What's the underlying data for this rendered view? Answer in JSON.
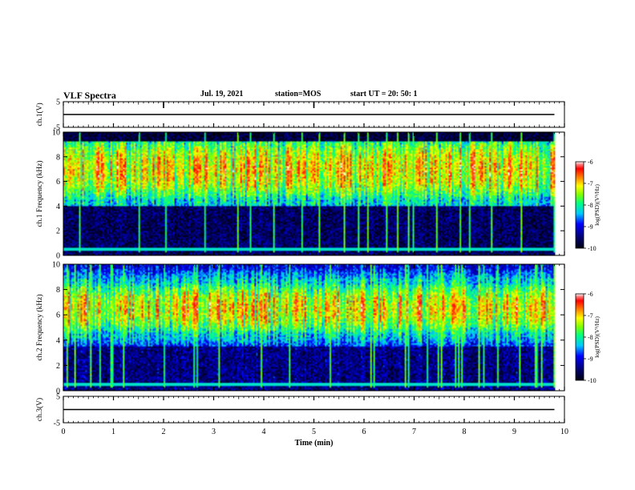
{
  "header": {
    "title": "VLF Spectra",
    "date": "Jul. 19, 2021",
    "station": "station=MOS",
    "start_ut": "start UT =  20: 50: 1"
  },
  "chart_data": [
    {
      "type": "line",
      "panel": "ch1-waveform",
      "ylabel": "ch.1(V)",
      "ylim": [
        -5,
        5
      ],
      "y_ticks": [
        "5",
        "-5"
      ],
      "xlim": [
        0,
        10
      ],
      "series": [
        {
          "x": [
            0,
            9.8
          ],
          "y": [
            0,
            0
          ]
        }
      ]
    },
    {
      "type": "heatmap",
      "panel": "ch1-spectrogram",
      "ylabel": "ch.1 Frequency (kHz)",
      "ylim": [
        0,
        10
      ],
      "y_ticks": [
        "0",
        "2",
        "4",
        "6",
        "8",
        "10"
      ],
      "xlim": [
        0,
        10
      ],
      "data_end_min": 9.8,
      "intense_band_khz": [
        5,
        9
      ],
      "colorbar": {
        "label": "log(PSD)(V²/Hz)",
        "range": [
          -10,
          -6
        ],
        "ticks": [
          "-6",
          "-7",
          "-8",
          "-9",
          "-10"
        ]
      }
    },
    {
      "type": "heatmap",
      "panel": "ch2-spectrogram",
      "ylabel": "ch.2 Frequency (kHz)",
      "ylim": [
        0,
        10
      ],
      "y_ticks": [
        "0",
        "2",
        "4",
        "6",
        "8",
        "10"
      ],
      "xlim": [
        0,
        10
      ],
      "data_end_min": 9.8,
      "intense_band_khz": [
        5,
        8
      ],
      "colorbar": {
        "label": "log(PSD)(V²/Hz)",
        "range": [
          -10,
          -6
        ],
        "ticks": [
          "-6",
          "-7",
          "-8",
          "-9",
          "-10"
        ]
      }
    },
    {
      "type": "line",
      "panel": "ch3-waveform",
      "ylabel": "ch.3(V)",
      "ylim": [
        -5,
        5
      ],
      "y_ticks": [
        "5",
        "-5"
      ],
      "xlim": [
        0,
        10
      ],
      "xlabel": "Time (min)",
      "x_ticks": [
        "0",
        "1",
        "2",
        "3",
        "4",
        "5",
        "6",
        "7",
        "8",
        "9",
        "10"
      ],
      "series": [
        {
          "x": [
            0,
            9.8
          ],
          "y": [
            0,
            0
          ]
        }
      ]
    }
  ]
}
